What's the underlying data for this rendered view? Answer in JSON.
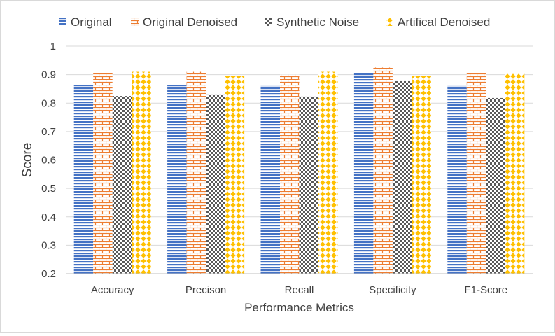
{
  "chart_data": {
    "type": "bar",
    "title": "",
    "xlabel": "Performance Metrics",
    "ylabel": "Score",
    "ylim": [
      0.2,
      1.0
    ],
    "ytick_step": 0.1,
    "yticks": [
      "0.2",
      "0.3",
      "0.4",
      "0.5",
      "0.6",
      "0.7",
      "0.8",
      "0.9",
      "1"
    ],
    "grid": true,
    "legend_position": "top",
    "categories": [
      "Accuracy",
      "Precison",
      "Recall",
      "Specificity",
      "F1-Score"
    ],
    "series": [
      {
        "name": "Original",
        "pattern": "horizontal-lines",
        "color": "#4472c4",
        "values": [
          0.865,
          0.868,
          0.86,
          0.905,
          0.86
        ]
      },
      {
        "name": "Original Denoised",
        "pattern": "brick",
        "color": "#ed7d31",
        "values": [
          0.905,
          0.91,
          0.9,
          0.925,
          0.905
        ]
      },
      {
        "name": "Synthetic  Noise",
        "pattern": "checkerboard",
        "color": "#595959",
        "values": [
          0.825,
          0.828,
          0.823,
          0.877,
          0.818
        ]
      },
      {
        "name": "Artifical Denoised",
        "pattern": "diamonds",
        "color": "#ffc000",
        "values": [
          0.91,
          0.895,
          0.91,
          0.895,
          0.905
        ]
      }
    ]
  }
}
